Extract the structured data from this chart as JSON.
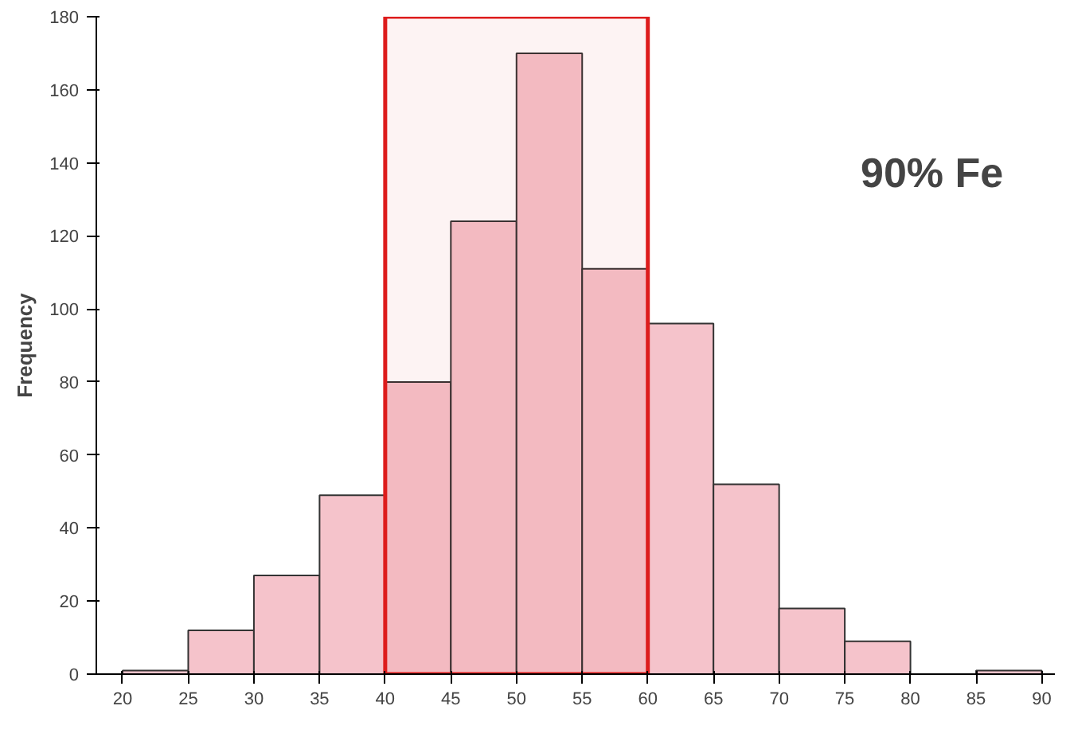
{
  "chart_data": {
    "type": "histogram",
    "ylabel": "Frequency",
    "bins": [
      20,
      25,
      30,
      35,
      40,
      45,
      50,
      55,
      60,
      65,
      70,
      75,
      80,
      85,
      90
    ],
    "values": [
      1,
      12,
      27,
      49,
      80,
      124,
      170,
      111,
      96,
      52,
      18,
      9,
      0,
      1
    ],
    "color": "#f5c3cb",
    "xlim": [
      18,
      91
    ],
    "xticks": [
      20,
      25,
      30,
      35,
      40,
      45,
      50,
      55,
      60,
      65,
      70,
      75,
      80,
      85,
      90
    ],
    "ylim": [
      0,
      180
    ],
    "yticks": [
      0,
      20,
      40,
      60,
      80,
      100,
      120,
      140,
      160,
      180
    ],
    "grid": false,
    "bands": [
      {
        "axis": "x",
        "from": 40,
        "to": 60,
        "color": "#dd1c1c"
      }
    ],
    "annotations": [
      "90% Fe"
    ]
  }
}
